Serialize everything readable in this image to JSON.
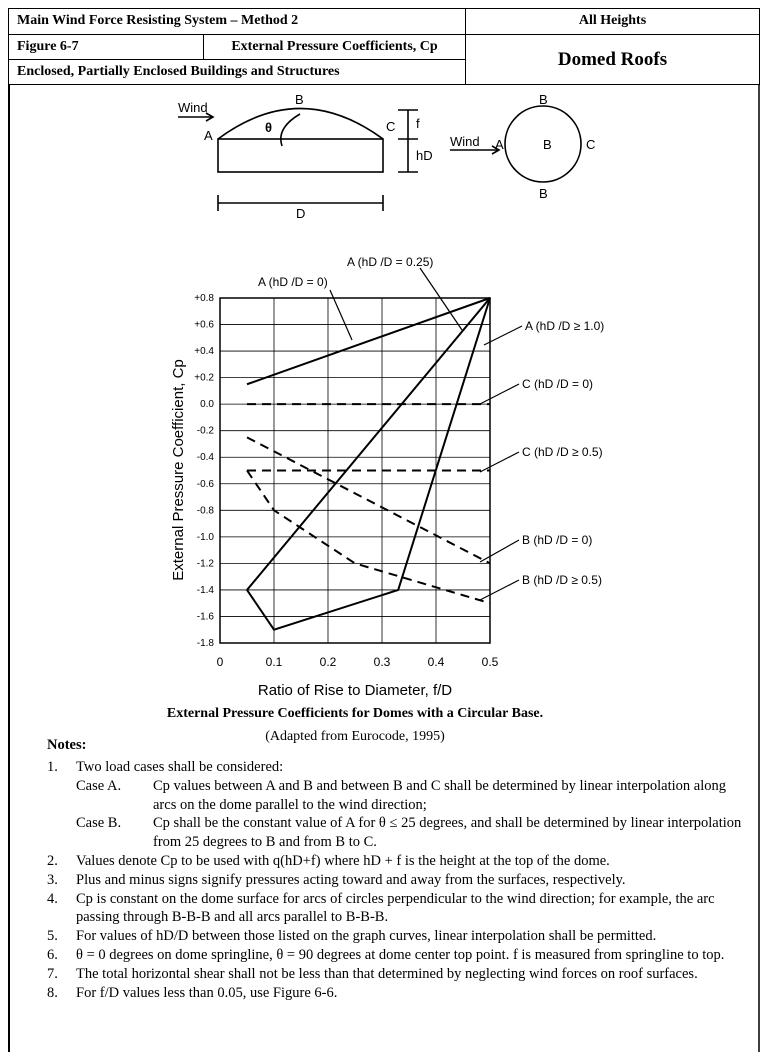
{
  "header": {
    "system": "Main Wind Force Resisting System – Method 2",
    "heights": "All Heights",
    "figure": "Figure 6-7",
    "subject": "External Pressure Coefficients, Cp",
    "buildings": "Enclosed, Partially Enclosed Buildings and Structures",
    "roof": "Domed Roofs"
  },
  "diagram": {
    "elevation": {
      "wind": "Wind",
      "top": "B",
      "angle": "θ",
      "left": "A",
      "right": "C",
      "rise": "f",
      "height": "hD",
      "diameter": "D"
    },
    "plan": {
      "wind": "Wind",
      "top": "B",
      "left": "A",
      "center": "B",
      "right": "C",
      "bottom": "B"
    }
  },
  "chart_data": {
    "type": "line",
    "title": "External Pressure Coefficients for Domes with a Circular Base.",
    "subtitle": "(Adapted from Eurocode, 1995)",
    "x_label": "Ratio of Rise to Diameter, f/D",
    "y_label": "External Pressure Coefficient, Cp",
    "xlim": [
      0,
      0.5
    ],
    "ylim": [
      -1.8,
      0.8
    ],
    "xticks": [
      0,
      0.1,
      0.2,
      0.3,
      0.4,
      0.5
    ],
    "yticks": [
      {
        "value": 0.8,
        "label": "+0.8"
      },
      {
        "value": 0.6,
        "label": "+0.6"
      },
      {
        "value": 0.4,
        "label": "+0.4"
      },
      {
        "value": 0.2,
        "label": "+0.2"
      },
      {
        "value": 0,
        "label": "0.0"
      },
      -0.2,
      -0.4,
      -0.6,
      -0.8,
      {
        "value": -1,
        "label": "-1.0"
      },
      -1.2,
      -1.4,
      -1.6,
      -1.8
    ],
    "grid": true,
    "series": [
      {
        "name": "A (hD /D = 0)",
        "color": "#000000",
        "style": "solid",
        "x": [
          0.05,
          0.5
        ],
        "values": [
          0.15,
          0.8
        ]
      },
      {
        "name": "A (hD /D = 0.25)",
        "color": "#000000",
        "style": "solid",
        "x": [
          0.05,
          0.5
        ],
        "values": [
          -1.4,
          0.8
        ]
      },
      {
        "name": "A (hD /D ≥ 1.0)",
        "color": "#000000",
        "style": "solid",
        "x": [
          0.05,
          0.1,
          0.33,
          0.5
        ],
        "values": [
          -1.4,
          -1.7,
          -1.4,
          0.8
        ]
      },
      {
        "name": "C (hD /D = 0)",
        "color": "#000000",
        "style": "dashed",
        "x": [
          0.05,
          0.5
        ],
        "values": [
          0,
          0
        ]
      },
      {
        "name": "C (hD /D ≥ 0.5)",
        "color": "#000000",
        "style": "dashed",
        "x": [
          0.05,
          0.5
        ],
        "values": [
          -0.5,
          -0.5
        ]
      },
      {
        "name": "B (hD /D = 0)",
        "color": "#000000",
        "style": "dashed",
        "x": [
          0.05,
          0.5
        ],
        "values": [
          -0.25,
          -1.2
        ]
      },
      {
        "name": "B (hD /D ≥ 0.5)",
        "color": "#000000",
        "style": "dashed",
        "x": [
          0.05,
          0.1,
          0.25,
          0.5
        ],
        "values": [
          -0.5,
          -0.8,
          -1.2,
          -1.5
        ]
      }
    ]
  },
  "notes": {
    "title": "Notes:",
    "items": [
      {
        "num": "1.",
        "text": "Two load cases shall be considered:",
        "cases": [
          {
            "label": "Case A.",
            "text": "Cp values between A and B and between B and C shall be determined by linear interpolation along arcs on the dome parallel to the wind direction;"
          },
          {
            "label": "Case B.",
            "text": "Cp shall be the constant value of A for θ ≤ 25 degrees, and shall be determined by linear interpolation from 25 degrees to B and from B to C."
          }
        ]
      },
      {
        "num": "2.",
        "text": "Values denote Cp to be used with q(hD+f) where hD + f is the height at the top of the dome."
      },
      {
        "num": "3.",
        "text": "Plus and minus signs signify pressures acting toward and away from the surfaces, respectively."
      },
      {
        "num": "4.",
        "text": "Cp is constant on the dome surface for arcs of circles perpendicular to the wind direction; for example, the arc passing through B-B-B and all arcs parallel to B-B-B."
      },
      {
        "num": "5.",
        "text": "For values of hD/D between those listed on the graph curves, linear interpolation shall be permitted."
      },
      {
        "num": "6.",
        "text": "θ = 0 degrees on dome springline, θ = 90 degrees at dome center top point. f is measured from springline to top."
      },
      {
        "num": "7.",
        "text": "The total horizontal shear shall not be less than that determined by neglecting wind forces on roof surfaces."
      },
      {
        "num": "8.",
        "text": "For f/D values less than 0.05, use Figure 6-6."
      }
    ]
  }
}
